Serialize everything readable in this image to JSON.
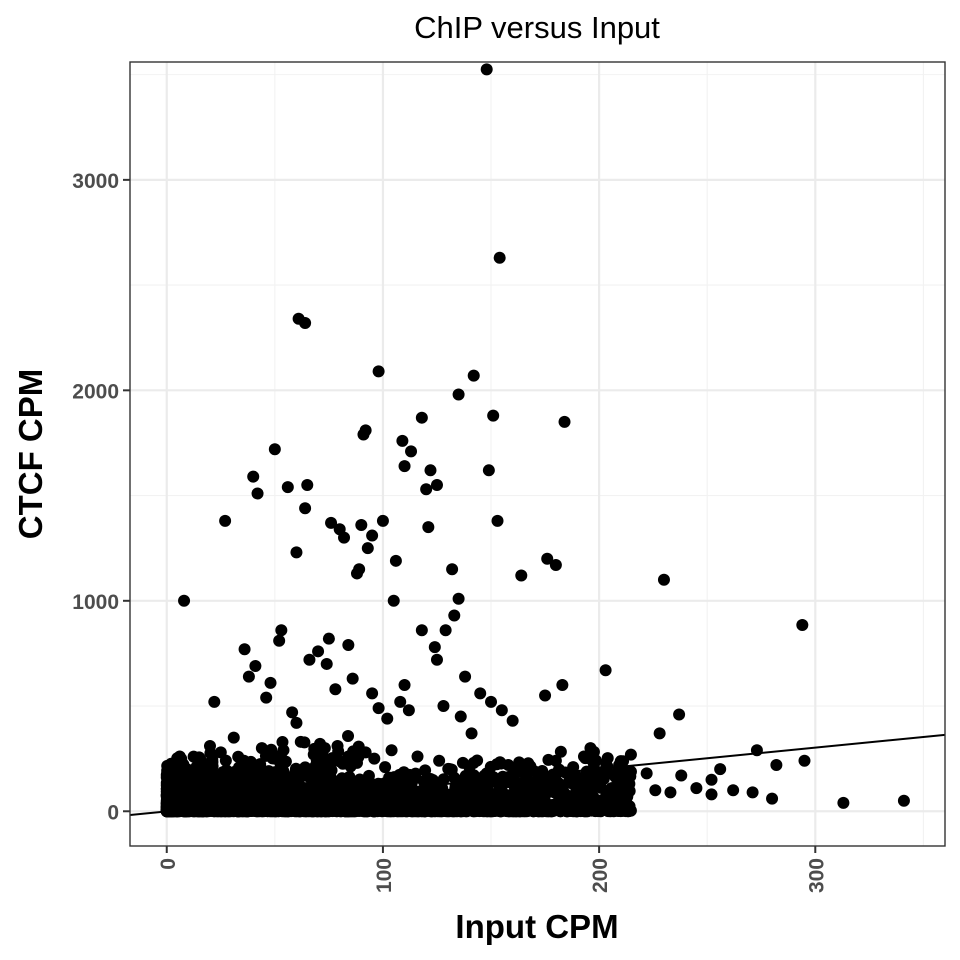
{
  "chart_data": {
    "type": "scatter",
    "title": "ChIP versus Input",
    "xlabel": "Input CPM",
    "ylabel": "CTCF CPM",
    "xlim": [
      -17,
      360
    ],
    "ylim": [
      -165,
      3560
    ],
    "xticks": [
      0,
      100,
      200,
      300
    ],
    "yticks": [
      0,
      1000,
      2000,
      3000
    ],
    "xtick_labels": [
      "0",
      "100",
      "200",
      "300"
    ],
    "ytick_labels": [
      "0",
      "1000",
      "2000",
      "3000"
    ],
    "grid": true,
    "legend": "none",
    "colors": {
      "points": "#000000",
      "line": "#000000",
      "grid": "#ebebeb",
      "border": "#333333"
    },
    "trend_line": {
      "x": [
        -17,
        360
      ],
      "y": [
        -18,
        363
      ]
    },
    "points": {
      "x": [
        148,
        154,
        61,
        64,
        98,
        142,
        135,
        151,
        184,
        50,
        109,
        113,
        110,
        118,
        125,
        122,
        120,
        149,
        40,
        42,
        56,
        65,
        27,
        92,
        91,
        100,
        90,
        95,
        105,
        64,
        76,
        80,
        82,
        60,
        93,
        106,
        89,
        121,
        88,
        132,
        153,
        176,
        180,
        164,
        135,
        118,
        125,
        133,
        129,
        124,
        138,
        230,
        294,
        8,
        22,
        53,
        66,
        52,
        36,
        41,
        38,
        48,
        70,
        75,
        84,
        74,
        78,
        46,
        58,
        60,
        86,
        95,
        98,
        102,
        108,
        112,
        110,
        128,
        136,
        141,
        145,
        150,
        155,
        160,
        175,
        183,
        203,
        237,
        228,
        273,
        282,
        295,
        313,
        341,
        256,
        252,
        238,
        222,
        212,
        196,
        193,
        188,
        180,
        170,
        162,
        158,
        148,
        142,
        6,
        20,
        25,
        31,
        44,
        50,
        54,
        62,
        68,
        73,
        79,
        84,
        88,
        92,
        96,
        101,
        104,
        116,
        126,
        131,
        137,
        140,
        166,
        172,
        178,
        186,
        191,
        197,
        206,
        214,
        226,
        233,
        245,
        252,
        262,
        271,
        280
      ],
      "y": [
        3525,
        2630,
        2340,
        2320,
        2090,
        2070,
        1980,
        1880,
        1850,
        1720,
        1760,
        1710,
        1640,
        1870,
        1550,
        1620,
        1530,
        1620,
        1590,
        1510,
        1540,
        1550,
        1380,
        1810,
        1790,
        1380,
        1360,
        1310,
        1000,
        1440,
        1370,
        1340,
        1300,
        1230,
        1250,
        1190,
        1150,
        1350,
        1130,
        1150,
        1380,
        1200,
        1170,
        1120,
        1010,
        860,
        720,
        930,
        860,
        780,
        640,
        1100,
        885,
        1000,
        520,
        860,
        720,
        810,
        770,
        690,
        640,
        610,
        760,
        820,
        790,
        700,
        580,
        540,
        470,
        420,
        630,
        560,
        490,
        440,
        520,
        480,
        600,
        500,
        450,
        370,
        560,
        520,
        480,
        430,
        550,
        600,
        670,
        460,
        370,
        290,
        220,
        240,
        40,
        50,
        200,
        150,
        170,
        180,
        100,
        300,
        260,
        210,
        240,
        190,
        200,
        220,
        180,
        230,
        260,
        310,
        280,
        350,
        300,
        250,
        290,
        330,
        270,
        240,
        310,
        260,
        230,
        280,
        250,
        210,
        290,
        260,
        240,
        200,
        230,
        210,
        190,
        160,
        150,
        140,
        130,
        120,
        110,
        130,
        100,
        90,
        110,
        80,
        100,
        90,
        60
      ]
    }
  }
}
